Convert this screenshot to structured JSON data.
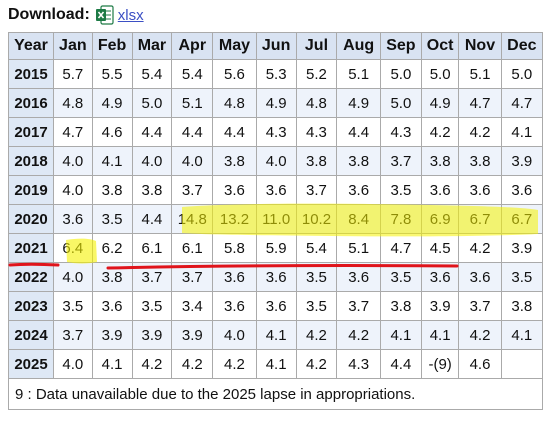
{
  "download": {
    "label": "Download:",
    "icon": "excel-file-icon",
    "link_text": "xlsx"
  },
  "table": {
    "headers": [
      "Year",
      "Jan",
      "Feb",
      "Mar",
      "Apr",
      "May",
      "Jun",
      "Jul",
      "Aug",
      "Sep",
      "Oct",
      "Nov",
      "Dec"
    ],
    "rows": [
      {
        "year": "2015",
        "values": [
          "5.7",
          "5.5",
          "5.4",
          "5.4",
          "5.6",
          "5.3",
          "5.2",
          "5.1",
          "5.0",
          "5.0",
          "5.1",
          "5.0"
        ]
      },
      {
        "year": "2016",
        "values": [
          "4.8",
          "4.9",
          "5.0",
          "5.1",
          "4.8",
          "4.9",
          "4.8",
          "4.9",
          "5.0",
          "4.9",
          "4.7",
          "4.7"
        ]
      },
      {
        "year": "2017",
        "values": [
          "4.7",
          "4.6",
          "4.4",
          "4.4",
          "4.4",
          "4.3",
          "4.3",
          "4.4",
          "4.3",
          "4.2",
          "4.2",
          "4.1"
        ]
      },
      {
        "year": "2018",
        "values": [
          "4.0",
          "4.1",
          "4.0",
          "4.0",
          "3.8",
          "4.0",
          "3.8",
          "3.8",
          "3.7",
          "3.8",
          "3.8",
          "3.9"
        ]
      },
      {
        "year": "2019",
        "values": [
          "4.0",
          "3.8",
          "3.8",
          "3.7",
          "3.6",
          "3.6",
          "3.7",
          "3.6",
          "3.5",
          "3.6",
          "3.6",
          "3.6"
        ]
      },
      {
        "year": "2020",
        "values": [
          "3.6",
          "3.5",
          "4.4",
          "14.8",
          "13.2",
          "11.0",
          "10.2",
          "8.4",
          "7.8",
          "6.9",
          "6.7",
          "6.7"
        ]
      },
      {
        "year": "2021",
        "values": [
          "6.4",
          "6.2",
          "6.1",
          "6.1",
          "5.8",
          "5.9",
          "5.4",
          "5.1",
          "4.7",
          "4.5",
          "4.2",
          "3.9"
        ]
      },
      {
        "year": "2022",
        "values": [
          "4.0",
          "3.8",
          "3.7",
          "3.7",
          "3.6",
          "3.6",
          "3.5",
          "3.6",
          "3.5",
          "3.6",
          "3.6",
          "3.5"
        ]
      },
      {
        "year": "2023",
        "values": [
          "3.5",
          "3.6",
          "3.5",
          "3.4",
          "3.6",
          "3.6",
          "3.5",
          "3.7",
          "3.8",
          "3.9",
          "3.7",
          "3.8"
        ]
      },
      {
        "year": "2024",
        "values": [
          "3.7",
          "3.9",
          "3.9",
          "3.9",
          "4.0",
          "4.1",
          "4.2",
          "4.2",
          "4.1",
          "4.1",
          "4.2",
          "4.1"
        ]
      },
      {
        "year": "2025",
        "values": [
          "4.0",
          "4.1",
          "4.2",
          "4.2",
          "4.2",
          "4.1",
          "4.2",
          "4.3",
          "4.4",
          "-(9)",
          "4.6",
          ""
        ]
      }
    ],
    "footnote": "9 : Data unavailable due to the 2025 lapse in appropriations."
  },
  "annotations": {
    "highlight_color": "#f5f200",
    "underline_color": "#e0141b"
  }
}
